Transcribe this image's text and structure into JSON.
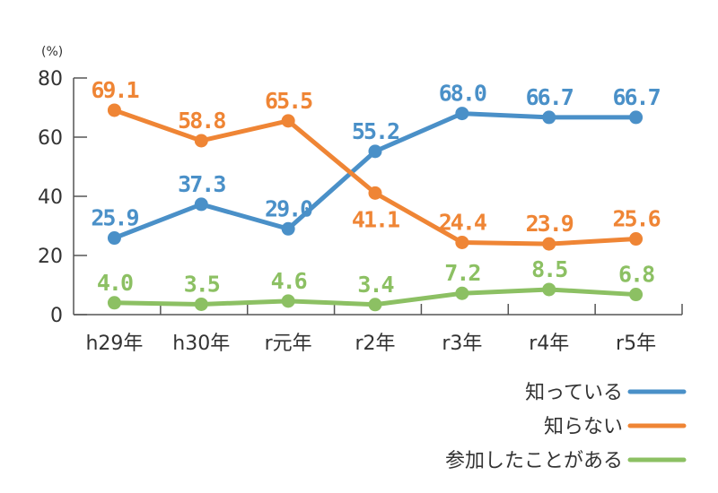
{
  "chart_data": {
    "type": "line",
    "title": "",
    "ylabel": "(%)",
    "xlabel": "",
    "ylim": [
      0,
      80
    ],
    "yticks": [
      "0",
      "20",
      "40",
      "60",
      "80"
    ],
    "categories": [
      "h29年",
      "h30年",
      "r元年",
      "r2年",
      "r3年",
      "r4年",
      "r5年"
    ],
    "grid": false,
    "legend_position": "bottom-right",
    "series": [
      {
        "name": "知っている",
        "color": "#4a90c8",
        "values": [
          25.9,
          37.3,
          29.0,
          55.2,
          68.0,
          66.7,
          66.7
        ],
        "labels": [
          "25.9",
          "37.3",
          "29.0",
          "55.2",
          "68.0",
          "66.7",
          "66.7"
        ],
        "label_position": [
          "above",
          "above",
          "above",
          "above",
          "above",
          "above",
          "above"
        ]
      },
      {
        "name": "知らない",
        "color": "#ef8535",
        "values": [
          69.1,
          58.8,
          65.5,
          41.1,
          24.4,
          23.9,
          25.6
        ],
        "labels": [
          "69.1",
          "58.8",
          "65.5",
          "41.1",
          "24.4",
          "23.9",
          "25.6"
        ],
        "label_position": [
          "above",
          "above",
          "above",
          "below",
          "above",
          "above",
          "above"
        ]
      },
      {
        "name": "参加したことがある",
        "color": "#8cc063",
        "values": [
          4.0,
          3.5,
          4.6,
          3.4,
          7.2,
          8.5,
          6.8
        ],
        "labels": [
          "4.0",
          "3.5",
          "4.6",
          "3.4",
          "7.2",
          "8.5",
          "6.8"
        ],
        "label_position": [
          "above",
          "above",
          "above",
          "above",
          "above",
          "above",
          "above"
        ]
      }
    ]
  }
}
